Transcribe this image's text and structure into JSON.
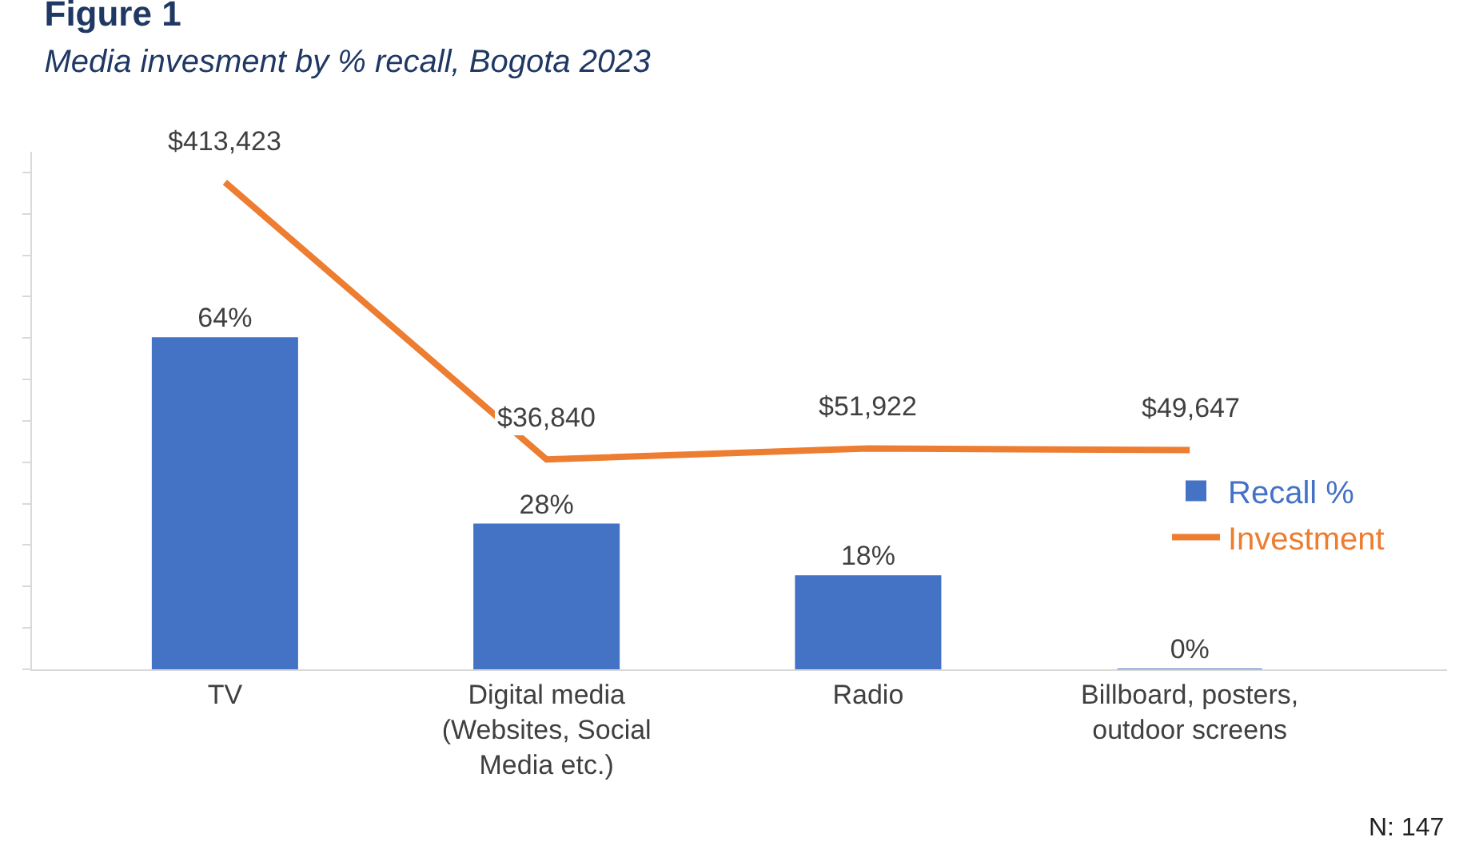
{
  "chart_data": {
    "type": "bar",
    "title": "Figure 1",
    "subtitle": "Media invesment by % recall, Bogota 2023",
    "categories": [
      "TV",
      "Digital media (Websites, Social Media etc.)",
      "Radio",
      "Billboard, posters, outdoor screens"
    ],
    "ylim": [
      0,
      100
    ],
    "tick_labels": "x",
    "legend": "right",
    "series": [
      {
        "name": "Recall %",
        "color": "#4472c4",
        "values": [
          64,
          28,
          18,
          0
        ],
        "value_labels": [
          "64%",
          "28%",
          "18%",
          "0%"
        ]
      },
      {
        "name": "Investment",
        "type": "line",
        "axis": "y2",
        "color": "#ed7d31",
        "marker": "none",
        "values": [
          413423,
          36840,
          51922,
          49647
        ],
        "value_labels": [
          "$413,423",
          "$36,840",
          "$51,922",
          "$49,647"
        ]
      }
    ],
    "annotations": [
      "N: 147"
    ]
  }
}
